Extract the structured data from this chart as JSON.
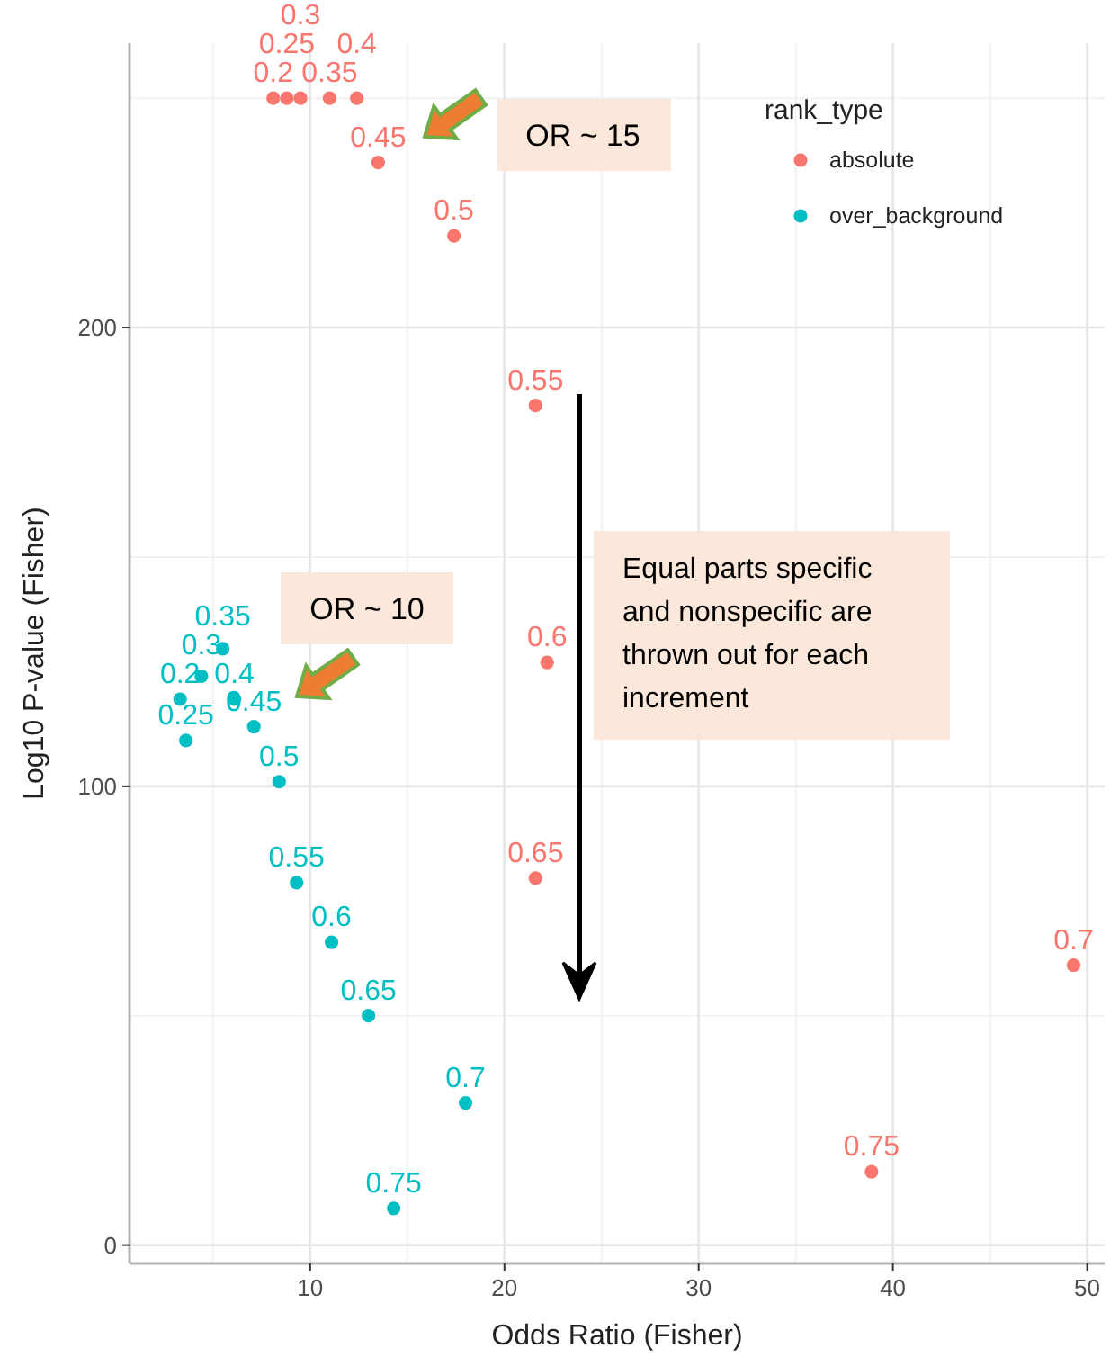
{
  "chart_data": {
    "type": "scatter",
    "xlabel": "Odds Ratio (Fisher)",
    "ylabel": "Log10 P-value (Fisher)",
    "legend_title": "rank_type",
    "xlim": [
      0.7,
      50.9
    ],
    "ylim": [
      -4,
      262
    ],
    "xticks": [
      10,
      20,
      30,
      40,
      50
    ],
    "yticks": [
      0,
      100,
      200
    ],
    "grid": true,
    "legend": "top right",
    "marker": "circle",
    "series": [
      {
        "name": "absolute",
        "color": "#f8766d",
        "x": [
          8.1,
          8.8,
          9.5,
          11.0,
          12.4,
          13.5,
          17.4,
          21.6,
          22.2,
          21.6,
          49.3,
          38.9
        ],
        "values": [
          250,
          250,
          250,
          250,
          250,
          236,
          220,
          183,
          127,
          80,
          61,
          16
        ]
      },
      {
        "name": "over_background",
        "color": "#00bfc4",
        "x": [
          3.3,
          3.6,
          4.4,
          5.5,
          6.1,
          7.1,
          8.4,
          9.3,
          11.1,
          13.0,
          18.0,
          14.3
        ],
        "values": [
          119,
          110,
          124,
          130,
          119,
          113,
          101,
          79,
          66,
          50,
          31,
          8
        ]
      }
    ],
    "annotations": [
      "OR ~ 15",
      "OR ~ 10",
      "Equal parts specific and nonspecific are thrown out for each increment",
      {
        "text": "0.2",
        "x": 8.1,
        "y": 250
      },
      {
        "text": "0.25",
        "x": 8.8,
        "y": 250
      },
      {
        "text": "0.3",
        "x": 9.5,
        "y": 250
      },
      {
        "text": "0.35",
        "x": 11.0,
        "y": 250
      },
      {
        "text": "0.4",
        "x": 12.4,
        "y": 250
      },
      {
        "text": "0.45",
        "x": 13.5,
        "y": 236
      },
      {
        "text": "0.5",
        "x": 17.4,
        "y": 220
      },
      {
        "text": "0.55",
        "x": 21.6,
        "y": 183
      },
      {
        "text": "0.6",
        "x": 22.2,
        "y": 127
      },
      {
        "text": "0.65",
        "x": 21.6,
        "y": 80
      },
      {
        "text": "0.7",
        "x": 49.3,
        "y": 61
      },
      {
        "text": "0.75",
        "x": 38.9,
        "y": 16
      },
      {
        "text": "0.2",
        "x": 3.3,
        "y": 119
      },
      {
        "text": "0.25",
        "x": 3.6,
        "y": 110
      },
      {
        "text": "0.3",
        "x": 4.4,
        "y": 124
      },
      {
        "text": "0.35",
        "x": 5.5,
        "y": 130
      },
      {
        "text": "0.4",
        "x": 6.1,
        "y": 119
      },
      {
        "text": "0.45",
        "x": 7.1,
        "y": 113
      },
      {
        "text": "0.5",
        "x": 8.4,
        "y": 101
      },
      {
        "text": "0.55",
        "x": 9.3,
        "y": 79
      },
      {
        "text": "0.6",
        "x": 11.1,
        "y": 66
      },
      {
        "text": "0.65",
        "x": 13.0,
        "y": 50
      },
      {
        "text": "0.7",
        "x": 18.0,
        "y": 31
      },
      {
        "text": "0.75",
        "x": 14.3,
        "y": 8
      }
    ]
  }
}
